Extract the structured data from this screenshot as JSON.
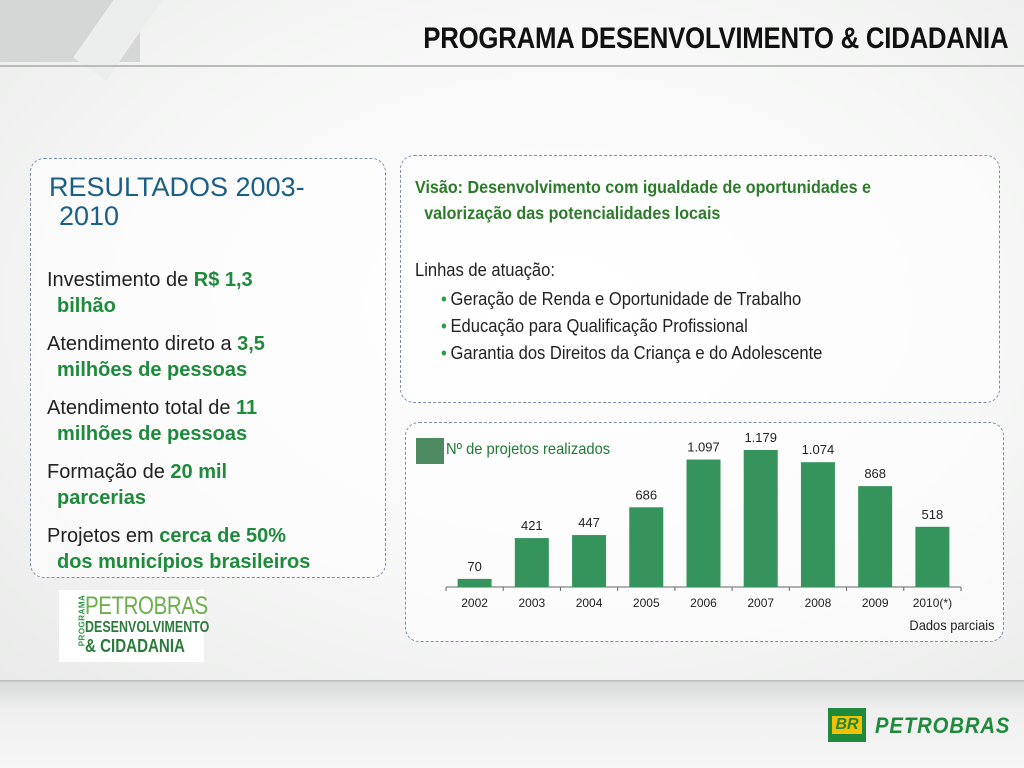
{
  "header": {
    "title": "PROGRAMA DESENVOLVIMENTO & CIDADANIA"
  },
  "results": {
    "title_line1": "RESULTADOS 2003-",
    "title_line2": "2010",
    "items": [
      {
        "prefix": "Investimento de ",
        "hl1": "R$ 1,3",
        "hl2": "bilhão"
      },
      {
        "prefix": "Atendimento direto a ",
        "hl1": "3,5",
        "hl2": "milhões de pessoas"
      },
      {
        "prefix": "Atendimento total de ",
        "hl1": "11",
        "hl2": "milhões de pessoas"
      },
      {
        "prefix": "Formação de ",
        "hl1": "20 mil",
        "hl2": "parcerias"
      },
      {
        "prefix": "Projetos em ",
        "hl1": "cerca de 50%",
        "hl2": "dos municípios brasileiros"
      }
    ]
  },
  "vision": {
    "line1": "Visão: Desenvolvimento com igualdade de oportunidades e",
    "line2": "valorização das  potencialidades locais",
    "lines_title": "Linhas de atuação:",
    "bullet": "•",
    "lines": [
      "Geração de Renda e Oportunidade de Trabalho",
      "Educação para Qualificação Profissional",
      "Garantia dos Direitos da Criança e do Adolescente"
    ]
  },
  "chart_data": {
    "type": "bar",
    "legend": "Nº de projetos realizados",
    "categories": [
      "2002",
      "2003",
      "2004",
      "2005",
      "2006",
      "2007",
      "2008",
      "2009",
      "2010(*)"
    ],
    "values": [
      70,
      421,
      447,
      686,
      1097,
      1179,
      1074,
      868,
      518
    ],
    "value_labels": [
      "70",
      "421",
      "447",
      "686",
      "1.097",
      "1.179",
      "1.074",
      "868",
      "518"
    ],
    "ylim": [
      0,
      1179
    ],
    "bar_color": "#35945c",
    "note": "Dados parciais"
  },
  "program_logo": {
    "side": "PROGRAMA",
    "line1": "PETROBRAS",
    "line2": "DESENVOLVIMENTO",
    "line3": "& CIDADANIA"
  },
  "brand": {
    "mark": "BR",
    "name": "PETROBRAS"
  }
}
